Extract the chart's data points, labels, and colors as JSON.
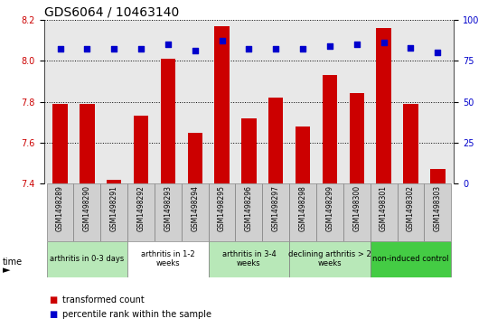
{
  "title": "GDS6064 / 10463140",
  "samples": [
    "GSM1498289",
    "GSM1498290",
    "GSM1498291",
    "GSM1498292",
    "GSM1498293",
    "GSM1498294",
    "GSM1498295",
    "GSM1498296",
    "GSM1498297",
    "GSM1498298",
    "GSM1498299",
    "GSM1498300",
    "GSM1498301",
    "GSM1498302",
    "GSM1498303"
  ],
  "bar_values": [
    7.79,
    7.79,
    7.42,
    7.73,
    8.01,
    7.65,
    8.17,
    7.72,
    7.82,
    7.68,
    7.93,
    7.84,
    8.16,
    7.79,
    7.47
  ],
  "percentile_values": [
    82,
    82,
    82,
    82,
    85,
    81,
    87,
    82,
    82,
    82,
    84,
    85,
    86,
    83,
    80
  ],
  "bar_bottom": 7.4,
  "ylim_left": [
    7.4,
    8.2
  ],
  "ylim_right": [
    0,
    100
  ],
  "yticks_left": [
    7.4,
    7.6,
    7.8,
    8.0,
    8.2
  ],
  "yticks_right": [
    0,
    25,
    50,
    75,
    100
  ],
  "bar_color": "#cc0000",
  "dot_color": "#0000cc",
  "background_plot": "#e8e8e8",
  "group_colors": [
    "#b8e8b8",
    "#ffffff",
    "#b8e8b8",
    "#b8e8b8",
    "#44cc44"
  ],
  "group_labels": [
    "arthritis in 0-3 days",
    "arthritis in 1-2\nweeks",
    "arthritis in 3-4\nweeks",
    "declining arthritis > 2\nweeks",
    "non-induced control"
  ],
  "group_starts": [
    0,
    3,
    6,
    9,
    12
  ],
  "group_ends": [
    3,
    6,
    9,
    12,
    15
  ],
  "legend_bar_label": "transformed count",
  "legend_dot_label": "percentile rank within the sample",
  "title_fontsize": 10,
  "tick_fontsize": 7,
  "label_fontsize": 5.5,
  "group_fontsize": 6,
  "bar_width": 0.55
}
